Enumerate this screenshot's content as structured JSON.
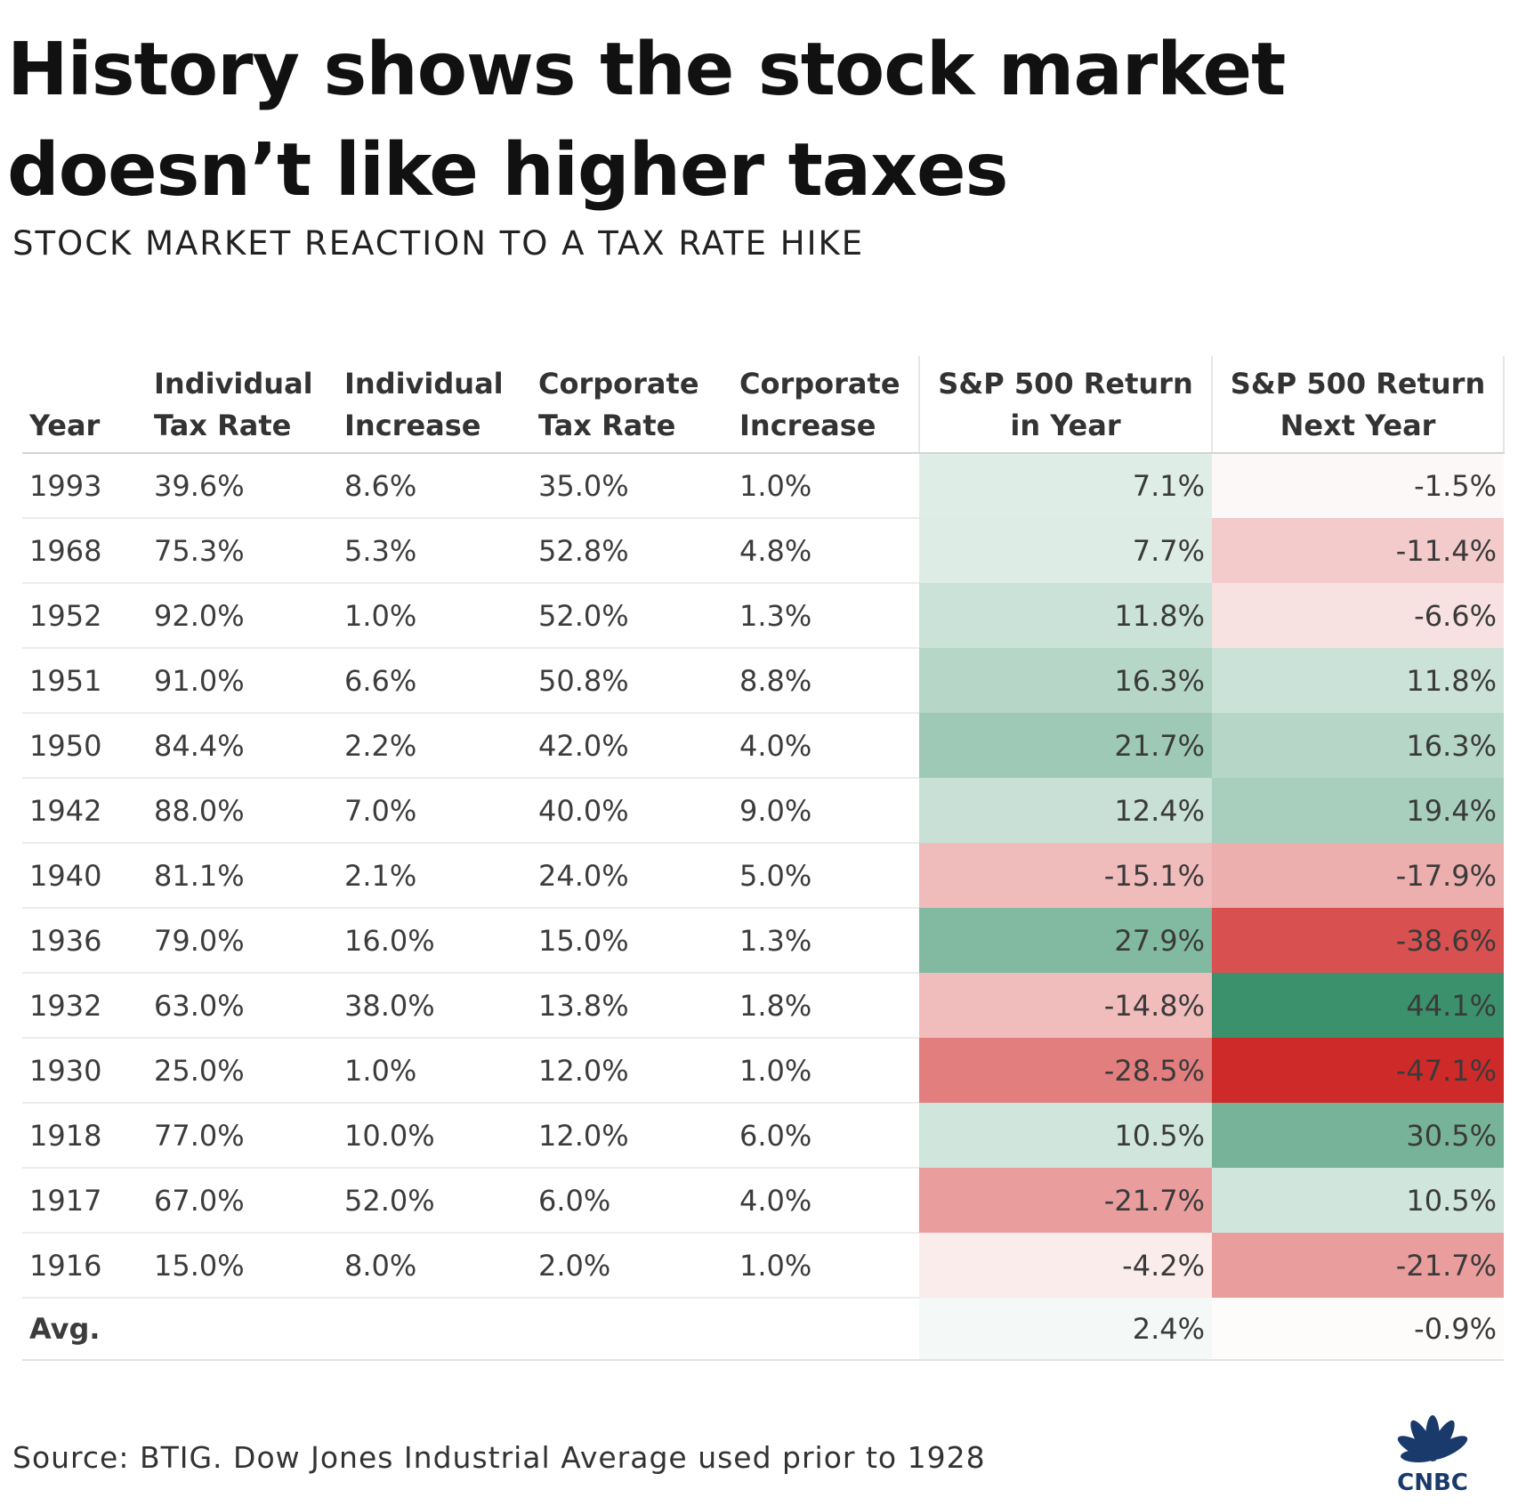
{
  "chart_data": {
    "type": "table",
    "title": "History shows the stock market doesn’t like higher taxes",
    "subtitle": "STOCK MARKET REACTION TO A TAX RATE HIKE",
    "columns": [
      "Year",
      "Individual Tax Rate",
      "Individual Increase",
      "Corporate Tax Rate",
      "Corporate Increase",
      "S&P 500 Return in Year",
      "S&P 500 Return Next Year"
    ],
    "rows": [
      {
        "year": "1993",
        "individual_tax_rate": "39.6%",
        "individual_increase": "8.6%",
        "corporate_tax_rate": "35.0%",
        "corporate_increase": "1.0%",
        "sp500_return_in_year": "7.1%",
        "sp500_return_next_year": "-1.5%"
      },
      {
        "year": "1968",
        "individual_tax_rate": "75.3%",
        "individual_increase": "5.3%",
        "corporate_tax_rate": "52.8%",
        "corporate_increase": "4.8%",
        "sp500_return_in_year": "7.7%",
        "sp500_return_next_year": "-11.4%"
      },
      {
        "year": "1952",
        "individual_tax_rate": "92.0%",
        "individual_increase": "1.0%",
        "corporate_tax_rate": "52.0%",
        "corporate_increase": "1.3%",
        "sp500_return_in_year": "11.8%",
        "sp500_return_next_year": "-6.6%"
      },
      {
        "year": "1951",
        "individual_tax_rate": "91.0%",
        "individual_increase": "6.6%",
        "corporate_tax_rate": "50.8%",
        "corporate_increase": "8.8%",
        "sp500_return_in_year": "16.3%",
        "sp500_return_next_year": "11.8%"
      },
      {
        "year": "1950",
        "individual_tax_rate": "84.4%",
        "individual_increase": "2.2%",
        "corporate_tax_rate": "42.0%",
        "corporate_increase": "4.0%",
        "sp500_return_in_year": "21.7%",
        "sp500_return_next_year": "16.3%"
      },
      {
        "year": "1942",
        "individual_tax_rate": "88.0%",
        "individual_increase": "7.0%",
        "corporate_tax_rate": "40.0%",
        "corporate_increase": "9.0%",
        "sp500_return_in_year": "12.4%",
        "sp500_return_next_year": "19.4%"
      },
      {
        "year": "1940",
        "individual_tax_rate": "81.1%",
        "individual_increase": "2.1%",
        "corporate_tax_rate": "24.0%",
        "corporate_increase": "5.0%",
        "sp500_return_in_year": "-15.1%",
        "sp500_return_next_year": "-17.9%"
      },
      {
        "year": "1936",
        "individual_tax_rate": "79.0%",
        "individual_increase": "16.0%",
        "corporate_tax_rate": "15.0%",
        "corporate_increase": "1.3%",
        "sp500_return_in_year": "27.9%",
        "sp500_return_next_year": "-38.6%"
      },
      {
        "year": "1932",
        "individual_tax_rate": "63.0%",
        "individual_increase": "38.0%",
        "corporate_tax_rate": "13.8%",
        "corporate_increase": "1.8%",
        "sp500_return_in_year": "-14.8%",
        "sp500_return_next_year": "44.1%"
      },
      {
        "year": "1930",
        "individual_tax_rate": "25.0%",
        "individual_increase": "1.0%",
        "corporate_tax_rate": "12.0%",
        "corporate_increase": "1.0%",
        "sp500_return_in_year": "-28.5%",
        "sp500_return_next_year": "-47.1%"
      },
      {
        "year": "1918",
        "individual_tax_rate": "77.0%",
        "individual_increase": "10.0%",
        "corporate_tax_rate": "12.0%",
        "corporate_increase": "6.0%",
        "sp500_return_in_year": "10.5%",
        "sp500_return_next_year": "30.5%"
      },
      {
        "year": "1917",
        "individual_tax_rate": "67.0%",
        "individual_increase": "52.0%",
        "corporate_tax_rate": "6.0%",
        "corporate_increase": "4.0%",
        "sp500_return_in_year": "-21.7%",
        "sp500_return_next_year": "10.5%"
      },
      {
        "year": "1916",
        "individual_tax_rate": "15.0%",
        "individual_increase": "8.0%",
        "corporate_tax_rate": "2.0%",
        "corporate_increase": "1.0%",
        "sp500_return_in_year": "-4.2%",
        "sp500_return_next_year": "-21.7%"
      }
    ],
    "average": {
      "label": "Avg.",
      "sp500_return_in_year": "2.4%",
      "sp500_return_next_year": "-0.9%"
    },
    "heatmap_colors": {
      "positive": "#2d8a61",
      "negative": "#cf2a2a"
    },
    "source": "Source: BTIG. Dow Jones Industrial Average used prior to 1928"
  },
  "logo": {
    "text": "CNBC",
    "icon": "peacock-icon"
  }
}
